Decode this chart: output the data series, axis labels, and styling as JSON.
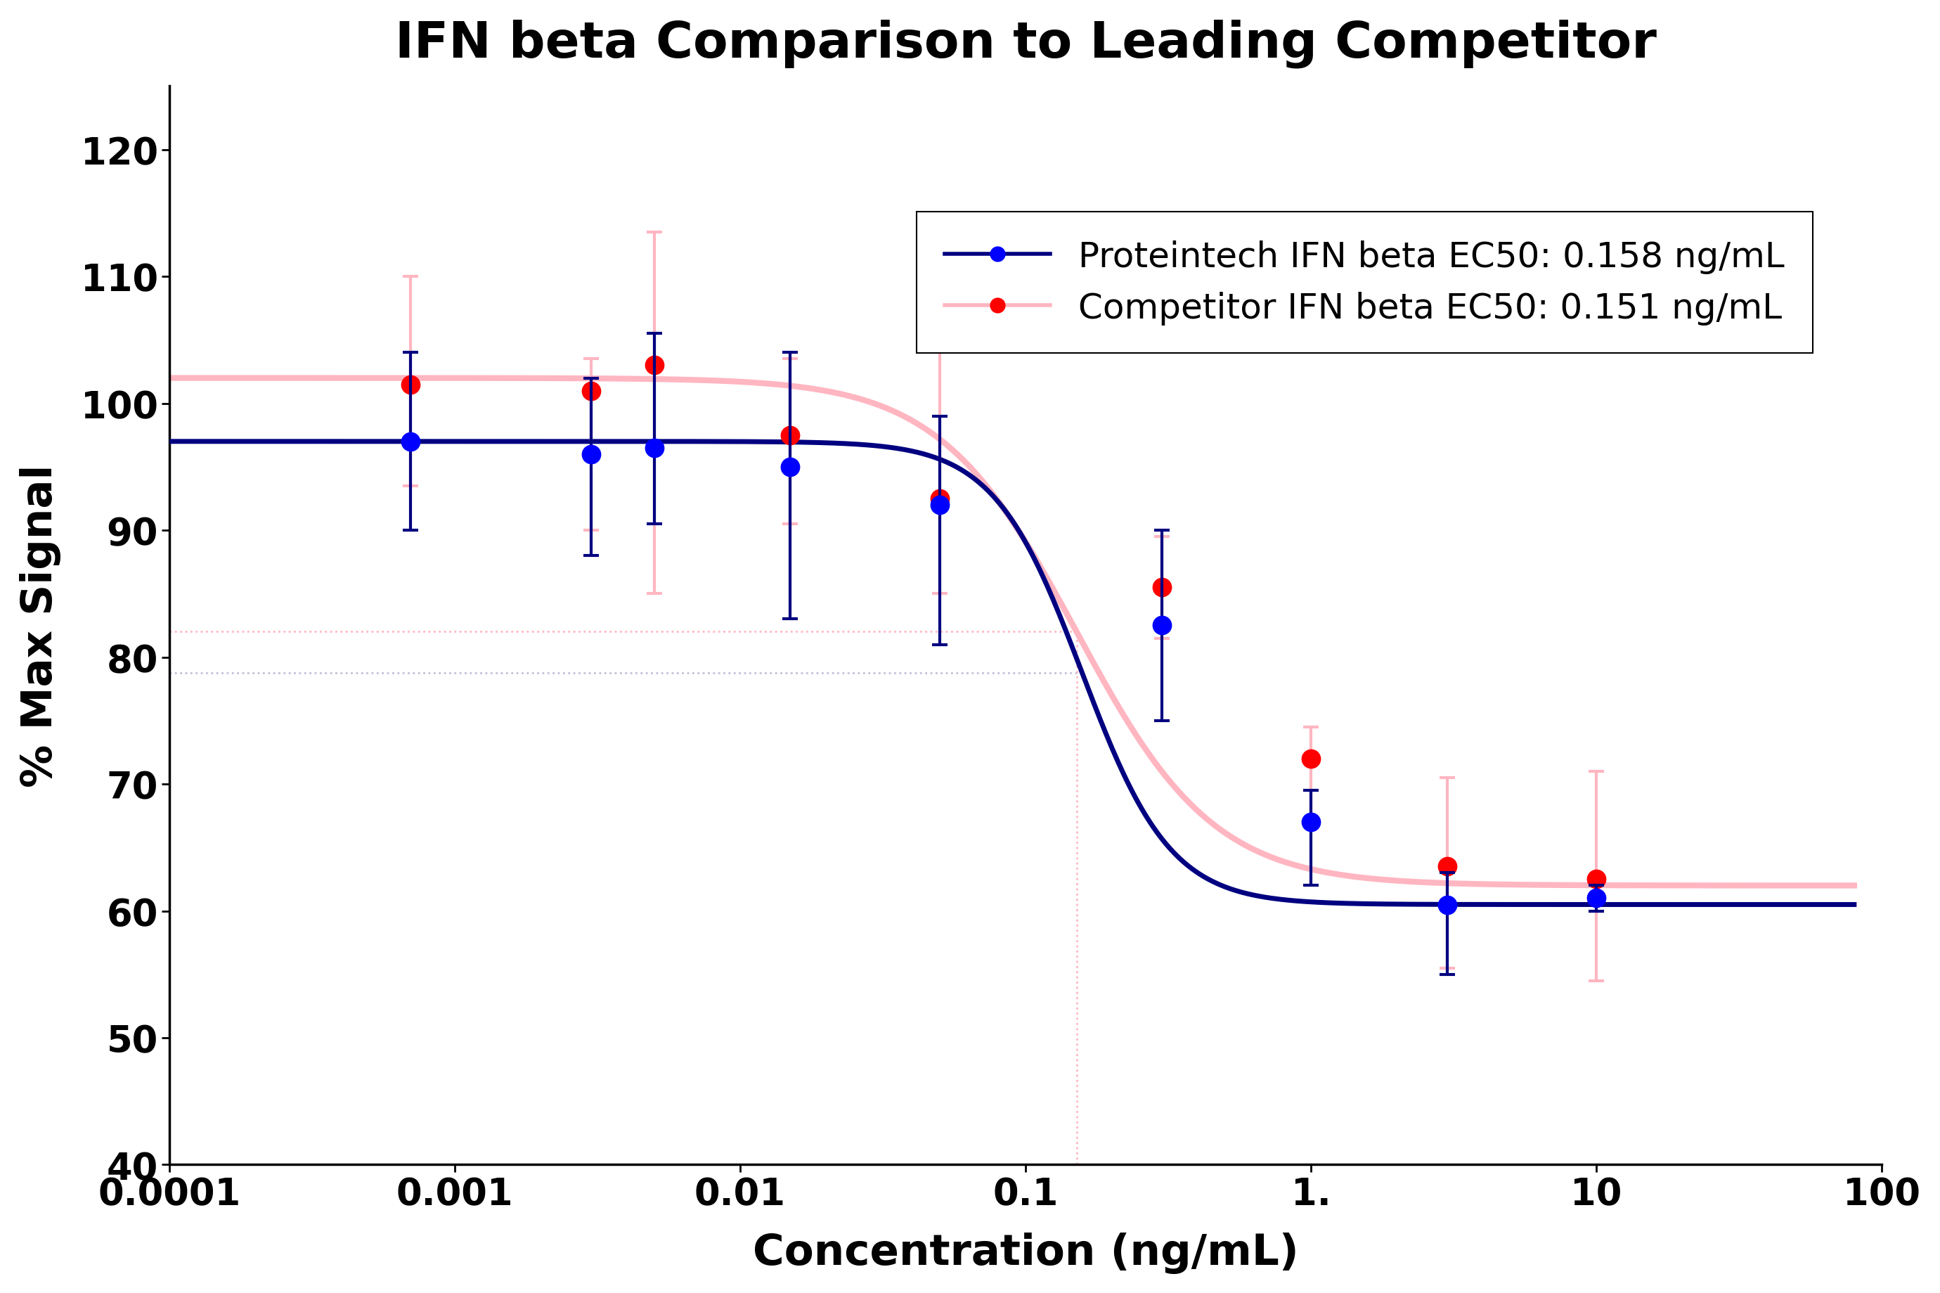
{
  "title": "IFN beta Comparison to Leading Competitor",
  "xlabel": "Concentration (ng/mL)",
  "ylabel": "% Max Signal",
  "xlim": [
    0.0001,
    100
  ],
  "ylim": [
    40,
    125
  ],
  "yticks": [
    40,
    50,
    60,
    70,
    80,
    90,
    100,
    110,
    120
  ],
  "xtick_labels": [
    "0.0001",
    "0.001",
    "0.01",
    "0.1",
    "1.",
    "10",
    "100"
  ],
  "xtick_positions": [
    0.0001,
    0.001,
    0.01,
    0.1,
    1.0,
    10,
    100
  ],
  "proteintech_ec50": 0.158,
  "competitor_ec50": 0.151,
  "proteintech_x": [
    0.0007,
    0.003,
    0.005,
    0.015,
    0.05,
    0.3,
    1.0,
    3.0,
    10.0
  ],
  "proteintech_y": [
    97.0,
    96.0,
    96.5,
    95.0,
    92.0,
    82.5,
    67.0,
    60.5,
    61.0
  ],
  "proteintech_yerr_low": [
    7.0,
    8.0,
    6.0,
    12.0,
    11.0,
    7.5,
    5.0,
    5.5,
    1.0
  ],
  "proteintech_yerr_high": [
    7.0,
    6.0,
    9.0,
    9.0,
    7.0,
    7.5,
    2.5,
    2.5,
    1.0
  ],
  "competitor_x": [
    0.0007,
    0.003,
    0.005,
    0.015,
    0.05,
    0.3,
    1.0,
    3.0,
    10.0
  ],
  "competitor_y": [
    101.5,
    101.0,
    103.0,
    97.5,
    92.5,
    85.5,
    72.0,
    63.5,
    62.5
  ],
  "competitor_yerr_low": [
    8.0,
    11.0,
    18.0,
    7.0,
    7.5,
    4.0,
    5.0,
    8.0,
    8.0
  ],
  "competitor_yerr_high": [
    8.5,
    2.5,
    10.5,
    6.0,
    12.0,
    4.0,
    2.5,
    7.0,
    8.5
  ],
  "proteintech_line_color": "#000080",
  "competitor_line_color": "#FFB6C1",
  "proteintech_marker_color": "#0000FF",
  "competitor_marker_color": "#FF0000",
  "curve_top_p": 97.0,
  "curve_bottom_p": 60.5,
  "curve_ec50_p": 0.158,
  "curve_hill_p": 2.8,
  "curve_top_c": 102.0,
  "curve_bottom_c": 62.0,
  "curve_ec50_c": 0.151,
  "curve_hill_c": 1.8,
  "hline_p_y": 78.75,
  "hline_c_y": 82.0,
  "vline_ec50_c": 0.151,
  "legend_labels": [
    "Proteintech IFN beta EC50: 0.158 ng/mL",
    "Competitor IFN beta EC50: 0.151 ng/mL"
  ],
  "title_fontsize": 52,
  "axis_label_fontsize": 44,
  "tick_fontsize": 38,
  "legend_fontsize": 36
}
